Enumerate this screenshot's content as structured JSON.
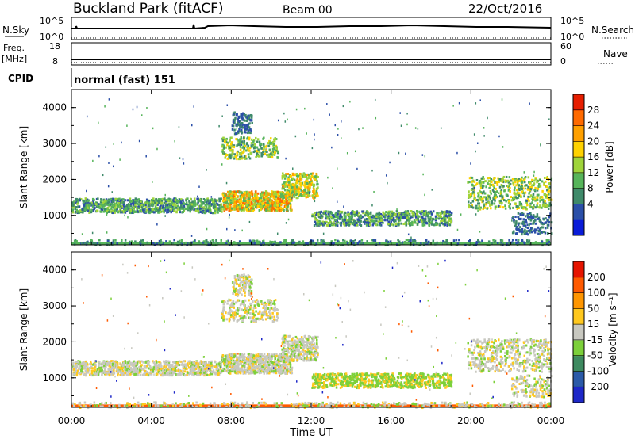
{
  "header": {
    "station": "Buckland Park (fitACF)",
    "beam": "Beam 00",
    "date": "22/Oct/2016"
  },
  "nsky_panel": {
    "left_label": "N.Sky",
    "left_ticks": [
      "10^5",
      "10^0"
    ],
    "right_ticks": [
      "10^5",
      "10^0"
    ],
    "right_label": "N.Search"
  },
  "freq_panel": {
    "left_label_1": "Freq.",
    "left_label_2": "[MHz]",
    "left_ticks": [
      "18",
      "8"
    ],
    "right_ticks": [
      "60",
      "0"
    ],
    "right_label": "Nave"
  },
  "cpid_panel": {
    "label": "CPID",
    "text": "normal (fast) 151"
  },
  "chart_data": [
    {
      "type": "heatmap",
      "quantity": "Power",
      "ylabel": "Slant Range [km]",
      "ylim": [
        180,
        4500
      ],
      "yticks": [
        "4000",
        "3000",
        "2000",
        "1000"
      ],
      "ytick_values": [
        4000,
        3000,
        2000,
        1000
      ],
      "colorbar_label": "Power [dB]",
      "colorbar_ticks": [
        "28",
        "24",
        "20",
        "16",
        "12",
        "8",
        "4"
      ],
      "colorbar_colors": [
        "#0a1cd8",
        "#2b4fa8",
        "#3f8a6a",
        "#56b45a",
        "#9fd43a",
        "#ffd200",
        "#ffa000",
        "#ff6a00",
        "#e61e00"
      ]
    },
    {
      "type": "heatmap",
      "quantity": "Velocity",
      "ylabel": "Slant Range [km]",
      "ylim": [
        180,
        4500
      ],
      "yticks": [
        "4000",
        "3000",
        "2000",
        "1000"
      ],
      "ytick_values": [
        4000,
        3000,
        2000,
        1000
      ],
      "colorbar_label": "Velocity [m s⁻¹]",
      "colorbar_ticks": [
        "200",
        "100",
        "50",
        "15",
        "-15",
        "-50",
        "-100",
        "-200"
      ],
      "colorbar_colors": [
        "#1e28c8",
        "#2b5aa8",
        "#3e8a60",
        "#7cd03a",
        "#c8c8c0",
        "#ffc81e",
        "#ff9600",
        "#ff5a00",
        "#e61400"
      ]
    }
  ],
  "xaxis": {
    "ticks": [
      "00:00",
      "04:00",
      "08:00",
      "12:00",
      "16:00",
      "20:00",
      "00:00"
    ],
    "tick_hours": [
      0,
      4,
      8,
      12,
      16,
      20,
      24
    ],
    "label": "Time UT"
  }
}
